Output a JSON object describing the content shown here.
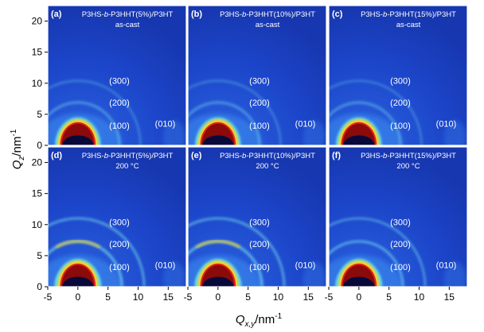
{
  "figure": {
    "y_axis": {
      "label_main": "Q",
      "label_sub": "z",
      "label_unit": "/nm",
      "label_exp": "-1",
      "ticks": [
        "0",
        "5",
        "10",
        "15",
        "20"
      ]
    },
    "x_axis": {
      "label_main": "Q",
      "label_sub": "x,y",
      "label_unit": "/nm",
      "label_exp": "-1",
      "ticks": [
        "-5",
        "0",
        "5",
        "10",
        "15"
      ]
    },
    "panels": [
      {
        "letter": "(a)",
        "title_pre": "P3HS-",
        "title_italic": "b",
        "title_post": "-P3HHT(5%)/P3HT",
        "condition": "as-cast"
      },
      {
        "letter": "(b)",
        "title_pre": "P3HS-",
        "title_italic": "b",
        "title_post": "-P3HHT(10%)/P3HT",
        "condition": "as-cast"
      },
      {
        "letter": "(c)",
        "title_pre": "P3HS-",
        "title_italic": "b",
        "title_post": "-P3HHT(15%)/P3HT",
        "condition": "as-cast"
      },
      {
        "letter": "(d)",
        "title_pre": "P3HS-",
        "title_italic": "b",
        "title_post": "-P3HHT(5%)/P3HT",
        "condition": "200 °C"
      },
      {
        "letter": "(e)",
        "title_pre": "P3HS-",
        "title_italic": "b",
        "title_post": "-P3HHT(10%)/P3HT",
        "condition": "200 °C"
      },
      {
        "letter": "(f)",
        "title_pre": "P3HS-",
        "title_italic": "b",
        "title_post": "-P3HHT(15%)/P3HT",
        "condition": "200 °C"
      }
    ],
    "peaks": {
      "p100": "(100)",
      "p200": "(200)",
      "p300": "(300)",
      "p010": "(010)"
    },
    "colors": {
      "background": "#1c45c9",
      "ring": "#6fd0ee",
      "hot": "#ffd21a",
      "core": "#8b0a0a",
      "beam": "#08083a"
    }
  }
}
